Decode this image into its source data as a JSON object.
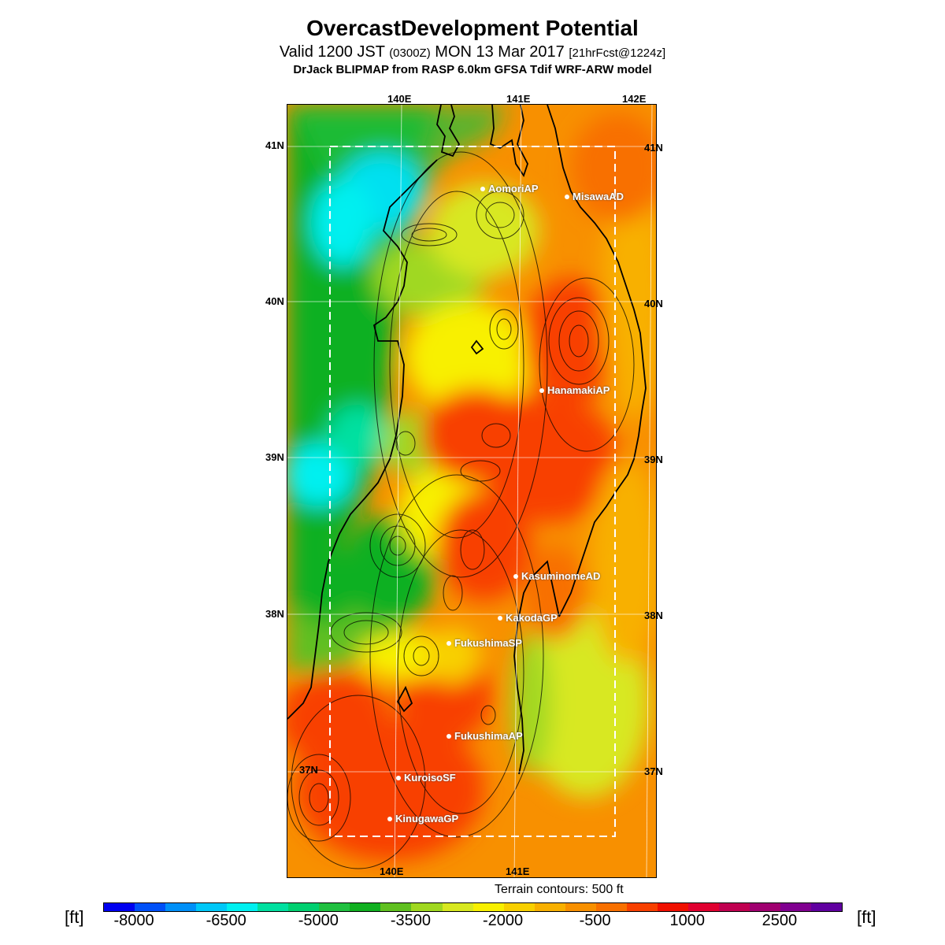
{
  "header": {
    "title": "OvercastDevelopment Potential",
    "valid_prefix": "Valid 1200 JST",
    "valid_zulu": "(0300Z)",
    "valid_date": "MON 13 Mar 2017",
    "forecast": "[21hrFcst@1224z]",
    "model": "DrJack BLIPMAP from RASP 6.0km GFSA Tdif WRF-ARW model"
  },
  "map": {
    "lon_labels_top": [
      "140E",
      "141E",
      "142E"
    ],
    "lon_labels_bottom": [
      "140E",
      "141E"
    ],
    "lat_labels_left": [
      "41N",
      "40N",
      "39N",
      "38N",
      "37N"
    ],
    "lat_labels_right": [
      "41N",
      "40N",
      "39N",
      "38N",
      "37N"
    ],
    "sites": [
      "AomoriAP",
      "MisawaAD",
      "HanamakiAP",
      "KasuminomeAD",
      "KakodaGP",
      "FukushimaSP",
      "FukushimaAP",
      "KuroisoSF",
      "KinugawaGP"
    ]
  },
  "terrain_note": "Terrain contours: 500 ft",
  "legend": {
    "unit_left": "[ft]",
    "unit_right": "[ft]",
    "tick_labels": [
      "-8000",
      "-6500",
      "-5000",
      "-3500",
      "-2000",
      "-500",
      "1000",
      "2500"
    ],
    "colors": [
      "#0000f0",
      "#0050f8",
      "#0090f8",
      "#00c8f8",
      "#00f0f0",
      "#00e0a0",
      "#00d070",
      "#20c040",
      "#10b020",
      "#60c020",
      "#a0d820",
      "#d8e820",
      "#f8f000",
      "#f8d000",
      "#f8b000",
      "#f89000",
      "#f87000",
      "#f84000",
      "#f01000",
      "#e00030",
      "#c00050",
      "#a00070",
      "#800090",
      "#6000a0"
    ]
  }
}
